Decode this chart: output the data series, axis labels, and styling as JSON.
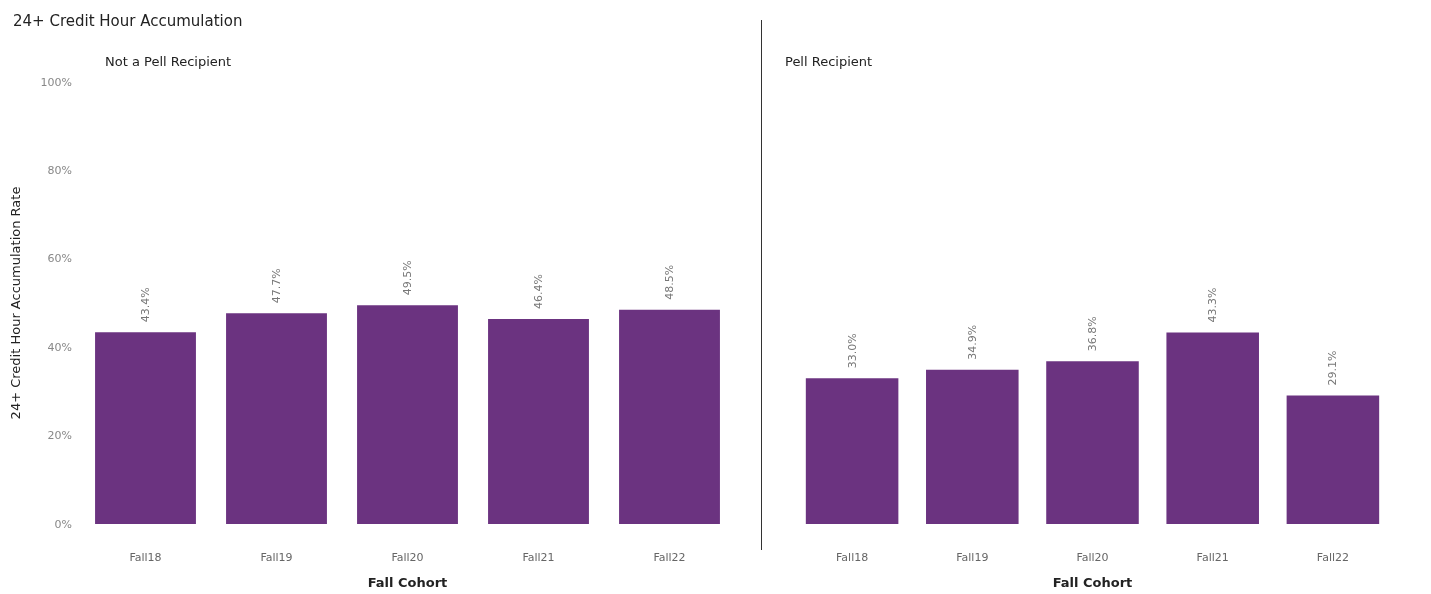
{
  "chart_data": [
    {
      "type": "bar",
      "title": "24+ Credit Hour Accumulation",
      "subtitle": "Not a Pell Recipient",
      "xlabel": "Fall Cohort",
      "ylabel": "24+ Credit Hour Accumulation Rate",
      "categories": [
        "Fall18",
        "Fall19",
        "Fall20",
        "Fall21",
        "Fall22"
      ],
      "values": [
        43.4,
        47.7,
        49.5,
        46.4,
        48.5
      ],
      "value_labels": [
        "43.4%",
        "47.7%",
        "49.5%",
        "46.4%",
        "48.5%"
      ],
      "color": "#6b3380",
      "ylim": [
        0,
        100
      ],
      "yticks": [
        {
          "value": 0,
          "label": "0%"
        },
        {
          "value": 20,
          "label": "20%"
        },
        {
          "value": 40,
          "label": "40%"
        },
        {
          "value": 60,
          "label": "60%"
        },
        {
          "value": 80,
          "label": "80%"
        },
        {
          "value": 100,
          "label": "100%"
        }
      ]
    },
    {
      "type": "bar",
      "subtitle": "Pell Recipient",
      "xlabel": "Fall Cohort",
      "categories": [
        "Fall18",
        "Fall19",
        "Fall20",
        "Fall21",
        "Fall22"
      ],
      "values": [
        33.0,
        34.9,
        36.8,
        43.3,
        29.1
      ],
      "value_labels": [
        "33.0%",
        "34.9%",
        "36.8%",
        "43.3%",
        "29.1%"
      ],
      "color": "#6b3380",
      "ylim": [
        0,
        100
      ],
      "tick_labels": "x"
    }
  ]
}
